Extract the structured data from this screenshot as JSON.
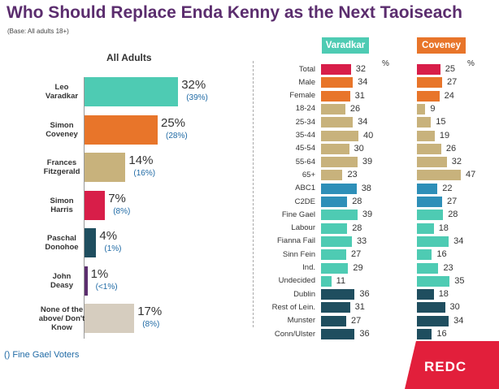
{
  "title": "Who Should Replace Enda Kenny as the Next Taoiseach",
  "base_note": "(Base: All adults 18+)",
  "legend_note": "() Fine Gael Voters",
  "logo_text": "REDC",
  "chart_data": [
    {
      "type": "bar",
      "title": "All Adults",
      "orientation": "horizontal",
      "categories": [
        "Leo Varadkar",
        "Simon Coveney",
        "Frances Fitzgerald",
        "Simon Harris",
        "Paschal Donohoe",
        "John Deasy",
        "None of the above/ Don't Know"
      ],
      "category_lines": [
        [
          "Leo",
          "Varadkar"
        ],
        [
          "Simon",
          "Coveney"
        ],
        [
          "Frances",
          "Fitzgerald"
        ],
        [
          "Simon",
          "Harris"
        ],
        [
          "Paschal",
          "Donohoe"
        ],
        [
          "John",
          "Deasy"
        ],
        [
          "None of the",
          "above/ Don't",
          "Know"
        ]
      ],
      "series": [
        {
          "name": "All Adults",
          "values": [
            32,
            25,
            14,
            7,
            4,
            1,
            17
          ],
          "labels": [
            "32%",
            "25%",
            "14%",
            "7%",
            "4%",
            "1%",
            "17%"
          ]
        },
        {
          "name": "Fine Gael Voters",
          "values": [
            39,
            28,
            16,
            8,
            1,
            0.5,
            8
          ],
          "labels": [
            "(39%)",
            "(28%)",
            "(16%)",
            "(8%)",
            "(1%)",
            "(<1%)",
            "(8%)"
          ]
        }
      ],
      "colors": [
        "#4ecbb3",
        "#e8752a",
        "#c8b27c",
        "#d81e49",
        "#1f4e5f",
        "#5b2d6e",
        "#d6cdbf"
      ]
    },
    {
      "type": "bar",
      "orientation": "horizontal",
      "unit": "%",
      "categories": [
        "Total",
        "Male",
        "Female",
        "18-24",
        "25-34",
        "35-44",
        "45-54",
        "55-64",
        "65+",
        "ABC1",
        "C2DE",
        "Fine Gael",
        "Labour",
        "Fianna Fail",
        "Sinn Fein",
        "Ind.",
        "Undecided",
        "Dublin",
        "Rest of Lein.",
        "Munster",
        "Conn/Ulster"
      ],
      "series": [
        {
          "name": "Varadkar",
          "values": [
            32,
            34,
            31,
            26,
            34,
            40,
            30,
            39,
            23,
            38,
            28,
            39,
            28,
            33,
            27,
            29,
            11,
            36,
            31,
            27,
            36
          ]
        },
        {
          "name": "Coveney",
          "values": [
            25,
            27,
            24,
            9,
            15,
            19,
            26,
            32,
            47,
            22,
            27,
            28,
            18,
            34,
            16,
            23,
            35,
            18,
            30,
            34,
            16
          ]
        }
      ],
      "row_colors": [
        "#d81e49",
        "#e8752a",
        "#e8752a",
        "#c8b27c",
        "#c8b27c",
        "#c8b27c",
        "#c8b27c",
        "#c8b27c",
        "#c8b27c",
        "#2e8fb8",
        "#2e8fb8",
        "#4ecbb3",
        "#4ecbb3",
        "#4ecbb3",
        "#4ecbb3",
        "#4ecbb3",
        "#4ecbb3",
        "#1f4e5f",
        "#1f4e5f",
        "#1f4e5f",
        "#1f4e5f"
      ],
      "header_colors": {
        "Varadkar": "#4ecbb3",
        "Coveney": "#e8752a"
      }
    }
  ]
}
